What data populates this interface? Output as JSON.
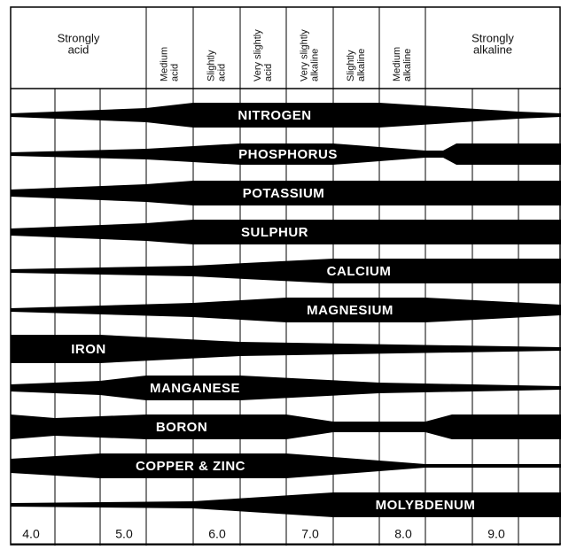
{
  "header": {
    "columns": [
      {
        "lines": [
          "Strongly",
          "acid"
        ]
      },
      {
        "lines": [
          "Medium",
          "acid"
        ]
      },
      {
        "lines": [
          "Slightly",
          "acid"
        ]
      },
      {
        "lines": [
          "Very slightly",
          "acid"
        ]
      },
      {
        "lines": [
          "Very slightly",
          "alkaline"
        ]
      },
      {
        "lines": [
          "Slightly",
          "alkaline"
        ]
      },
      {
        "lines": [
          "Medium",
          "alkaline"
        ]
      },
      {
        "lines": [
          "Strongly",
          "alkaline"
        ]
      }
    ]
  },
  "nutrients": [
    "NITROGEN",
    "PHOSPHORUS",
    "POTASSIUM",
    "SULPHUR",
    "CALCIUM",
    "MAGNESIUM",
    "IRON",
    "MANGANESE",
    "BORON",
    "COPPER & ZINC",
    "MOLYBDENUM"
  ],
  "ph_labels": [
    "4.0",
    "5.0",
    "6.0",
    "7.0",
    "8.0",
    "9.0"
  ]
}
